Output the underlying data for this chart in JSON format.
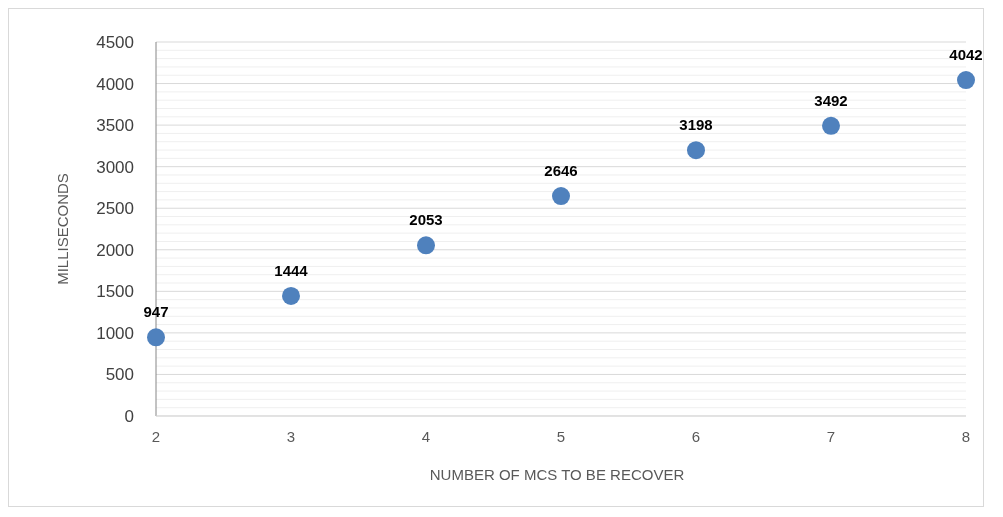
{
  "chart_data": {
    "type": "scatter",
    "xlabel": "NUMBER OF MCS TO BE RECOVER",
    "ylabel": "MILLISECONDS",
    "x": [
      2,
      3,
      4,
      5,
      6,
      7,
      8
    ],
    "series": [
      {
        "color": "#4f81bd",
        "values": [
          947,
          1444,
          2053,
          2646,
          3198,
          3492,
          4042
        ]
      }
    ],
    "data_labels": true,
    "marker": "circle",
    "grid": "y",
    "xlim": [
      2,
      8
    ],
    "xticks": [
      2,
      3,
      4,
      5,
      6,
      7,
      8
    ],
    "ylim": [
      0,
      4500
    ],
    "yticks": [
      0,
      {
        "value": 100,
        "label": null
      },
      {
        "value": 200,
        "label": null
      },
      {
        "value": 300,
        "label": null
      },
      {
        "value": 400,
        "label": null
      },
      500,
      {
        "value": 600,
        "label": null
      },
      {
        "value": 700,
        "label": null
      },
      {
        "value": 800,
        "label": null
      },
      {
        "value": 900,
        "label": null
      },
      1000,
      {
        "value": 1100,
        "label": null
      },
      {
        "value": 1200,
        "label": null
      },
      {
        "value": 1300,
        "label": null
      },
      {
        "value": 1400,
        "label": null
      },
      1500,
      {
        "value": 1600,
        "label": null
      },
      {
        "value": 1700,
        "label": null
      },
      {
        "value": 1800,
        "label": null
      },
      {
        "value": 1900,
        "label": null
      },
      2000,
      {
        "value": 2100,
        "label": null
      },
      {
        "value": 2200,
        "label": null
      },
      {
        "value": 2300,
        "label": null
      },
      {
        "value": 2400,
        "label": null
      },
      2500,
      {
        "value": 2600,
        "label": null
      },
      {
        "value": 2700,
        "label": null
      },
      {
        "value": 2800,
        "label": null
      },
      {
        "value": 2900,
        "label": null
      },
      3000,
      {
        "value": 3100,
        "label": null
      },
      {
        "value": 3200,
        "label": null
      },
      {
        "value": 3300,
        "label": null
      },
      {
        "value": 3400,
        "label": null
      },
      3500,
      {
        "value": 3600,
        "label": null
      },
      {
        "value": 3700,
        "label": null
      },
      {
        "value": 3800,
        "label": null
      },
      {
        "value": 3900,
        "label": null
      },
      4000,
      {
        "value": 4100,
        "label": null
      },
      {
        "value": 4200,
        "label": null
      },
      {
        "value": 4300,
        "label": null
      },
      {
        "value": 4400,
        "label": null
      },
      4500
    ]
  }
}
